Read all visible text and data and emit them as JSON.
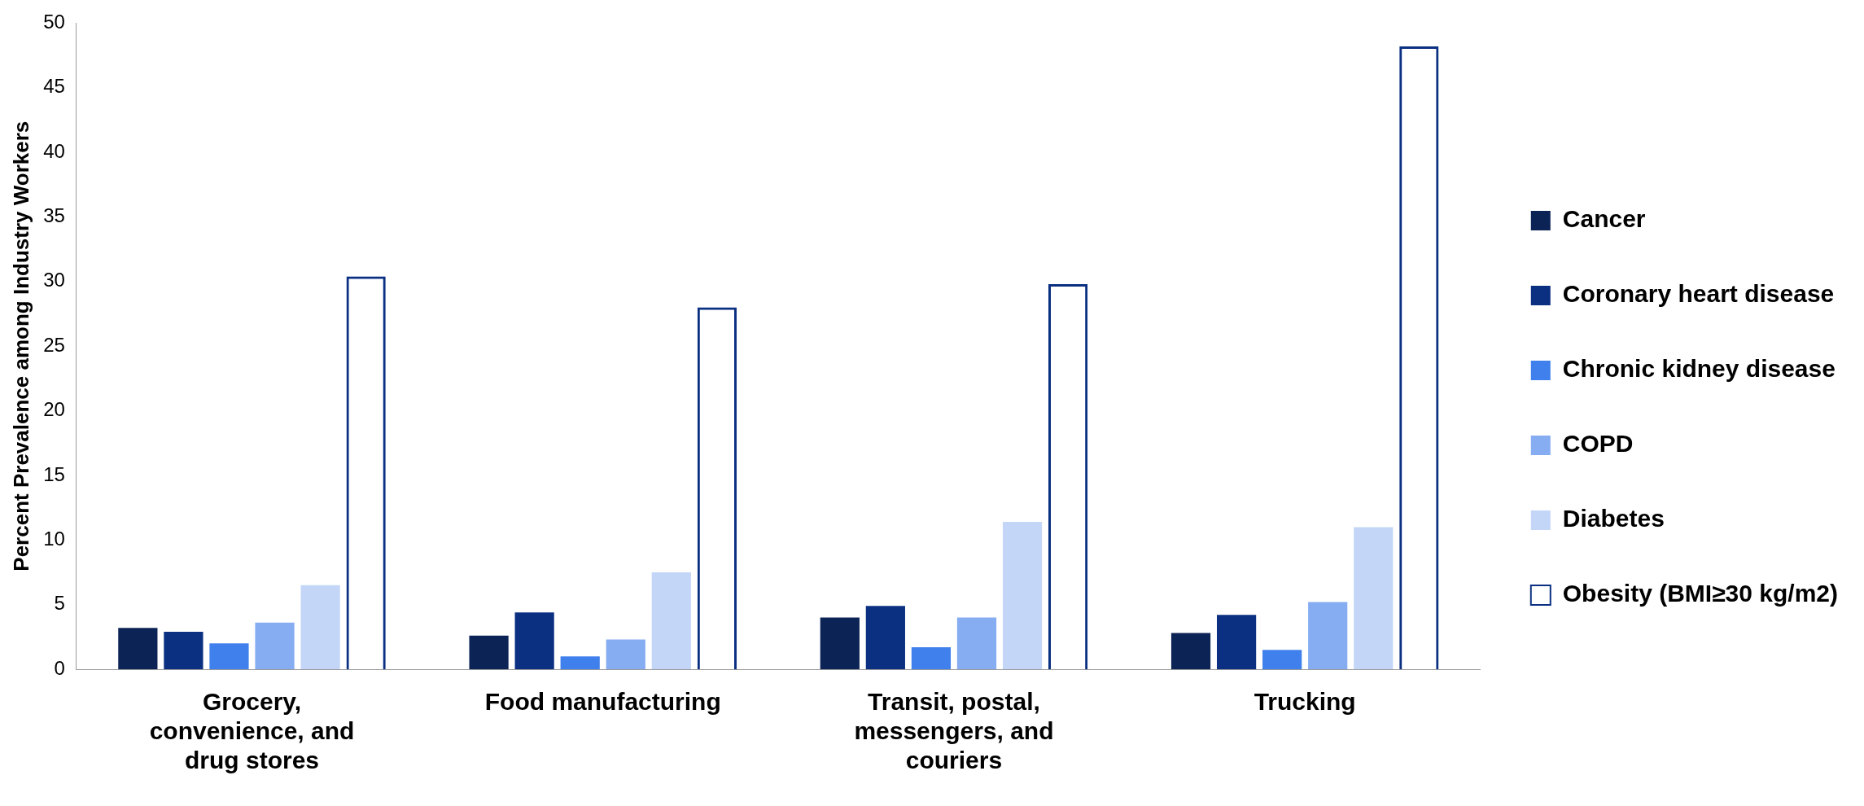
{
  "chart_data": {
    "type": "bar",
    "ylabel": "Percent Prevalence among Industry Workers",
    "categories": [
      "Grocery, convenience, and drug stores",
      "Food manufacturing",
      "Transit, postal, messengers, and couriers",
      "Trucking"
    ],
    "series": [
      {
        "name": "Cancer",
        "color": "#0c2356",
        "values": [
          3.2,
          2.6,
          4.0,
          2.8
        ]
      },
      {
        "name": "Coronary heart disease",
        "color": "#0b3082",
        "values": [
          2.9,
          4.4,
          4.9,
          4.2
        ]
      },
      {
        "name": "Chronic kidney disease",
        "color": "#3f80ec",
        "values": [
          2.0,
          1.0,
          1.7,
          1.5
        ]
      },
      {
        "name": "COPD",
        "color": "#86acf2",
        "values": [
          3.6,
          2.3,
          4.0,
          5.2
        ]
      },
      {
        "name": "Diabetes",
        "color": "#c3d6f8",
        "values": [
          6.5,
          7.5,
          11.4,
          11.0
        ]
      },
      {
        "name": "Obesity (BMI≥30 kg/m2)",
        "color": "#0b3082",
        "line_style": "solid",
        "values": [
          30.4,
          28.0,
          29.8,
          48.2
        ]
      }
    ],
    "ylim": [
      0,
      50
    ],
    "yticks": [
      0,
      5,
      10,
      15,
      20,
      25,
      30,
      35,
      40,
      45,
      50
    ],
    "grid": false,
    "legend": "right"
  }
}
